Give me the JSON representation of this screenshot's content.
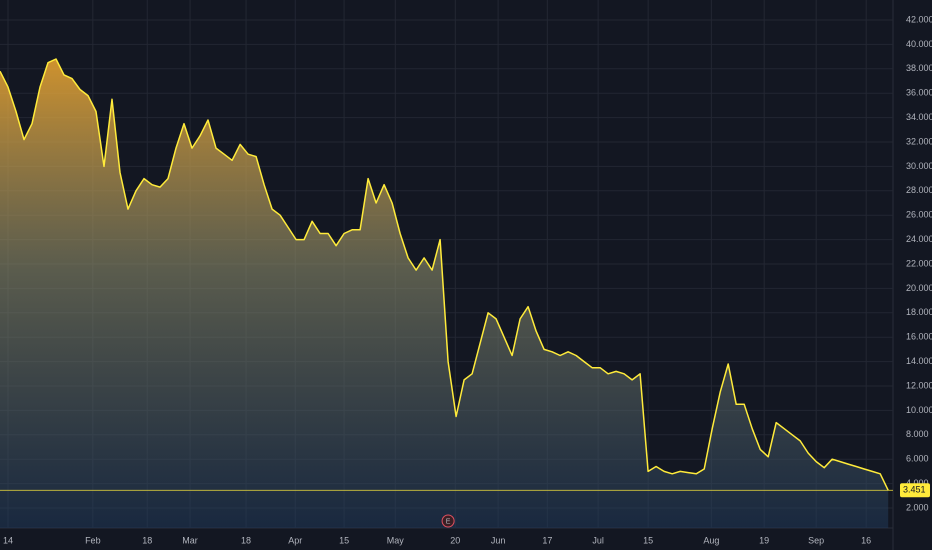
{
  "chart_data": {
    "type": "area",
    "values": [
      37.8,
      36.5,
      34.5,
      32.2,
      33.5,
      36.5,
      38.5,
      38.8,
      37.5,
      37.2,
      36.3,
      35.8,
      34.5,
      30.0,
      35.5,
      29.5,
      26.5,
      28.0,
      29.0,
      28.5,
      28.3,
      29.0,
      31.5,
      33.5,
      31.5,
      32.5,
      33.8,
      31.5,
      31.0,
      30.5,
      31.8,
      31.0,
      30.8,
      28.5,
      26.5,
      26.0,
      25.0,
      24.0,
      24.0,
      25.5,
      24.5,
      24.5,
      23.5,
      24.5,
      24.8,
      24.8,
      29.0,
      27.0,
      28.5,
      27.0,
      24.5,
      22.5,
      21.5,
      22.5,
      21.5,
      24.0,
      14.0,
      9.5,
      12.5,
      13.0,
      15.5,
      18.0,
      17.5,
      16.0,
      14.5,
      17.5,
      18.5,
      16.5,
      15.0,
      14.8,
      14.5,
      14.8,
      14.5,
      14.0,
      13.5,
      13.5,
      13.0,
      13.2,
      13.0,
      12.5,
      13.0,
      5.0,
      5.4,
      5.0,
      4.8,
      5.0,
      4.9,
      4.8,
      5.2,
      8.5,
      11.5,
      13.8,
      10.5,
      10.5,
      8.5,
      6.8,
      6.2,
      9.0,
      8.5,
      8.0,
      7.5,
      6.5,
      5.8,
      5.3,
      6.0,
      5.8,
      5.6,
      5.4,
      5.2,
      5.0,
      4.8,
      3.451
    ],
    "color": "#ffeb3b",
    "xlim": [
      0,
      111.6
    ],
    "xticks": [
      {
        "value": 1,
        "label": "14"
      },
      {
        "value": 11.6,
        "label": "Feb"
      },
      {
        "value": 18.4,
        "label": "18"
      },
      {
        "value": 23.75,
        "label": "Mar"
      },
      {
        "value": 30.75,
        "label": "18"
      },
      {
        "value": 36.9,
        "label": "Apr"
      },
      {
        "value": 43,
        "label": "15"
      },
      {
        "value": 49.4,
        "label": "May"
      },
      {
        "value": 56.9,
        "label": "20"
      },
      {
        "value": 62.25,
        "label": "Jun"
      },
      {
        "value": 68.4,
        "label": "17"
      },
      {
        "value": 74.75,
        "label": "Jul"
      },
      {
        "value": 81,
        "label": "15"
      },
      {
        "value": 88.9,
        "label": "Aug"
      },
      {
        "value": 95.5,
        "label": "19"
      },
      {
        "value": 102,
        "label": "Sep"
      },
      {
        "value": 108.25,
        "label": "16"
      }
    ],
    "ylim": [
      2,
      42
    ],
    "yticks": [
      {
        "value": 2,
        "label": "2.000"
      },
      {
        "value": 4,
        "label": "4.000"
      },
      {
        "value": 6,
        "label": "6.000"
      },
      {
        "value": 8,
        "label": "8.000"
      },
      {
        "value": 10,
        "label": "10.000"
      },
      {
        "value": 12,
        "label": "12.000"
      },
      {
        "value": 14,
        "label": "14.000"
      },
      {
        "value": 16,
        "label": "16.000"
      },
      {
        "value": 18,
        "label": "18.000"
      },
      {
        "value": 20,
        "label": "20.000"
      },
      {
        "value": 22,
        "label": "22.000"
      },
      {
        "value": 24,
        "label": "24.000"
      },
      {
        "value": 26,
        "label": "26.000"
      },
      {
        "value": 28,
        "label": "28.000"
      },
      {
        "value": 30,
        "label": "30.000"
      },
      {
        "value": 32,
        "label": "32.000"
      },
      {
        "value": 34,
        "label": "34.000"
      },
      {
        "value": 36,
        "label": "36.000"
      },
      {
        "value": 38,
        "label": "38.000"
      },
      {
        "value": 40,
        "label": "40.000"
      },
      {
        "value": 42,
        "label": "42.000"
      }
    ],
    "grid": true,
    "annotation": "E"
  }
}
